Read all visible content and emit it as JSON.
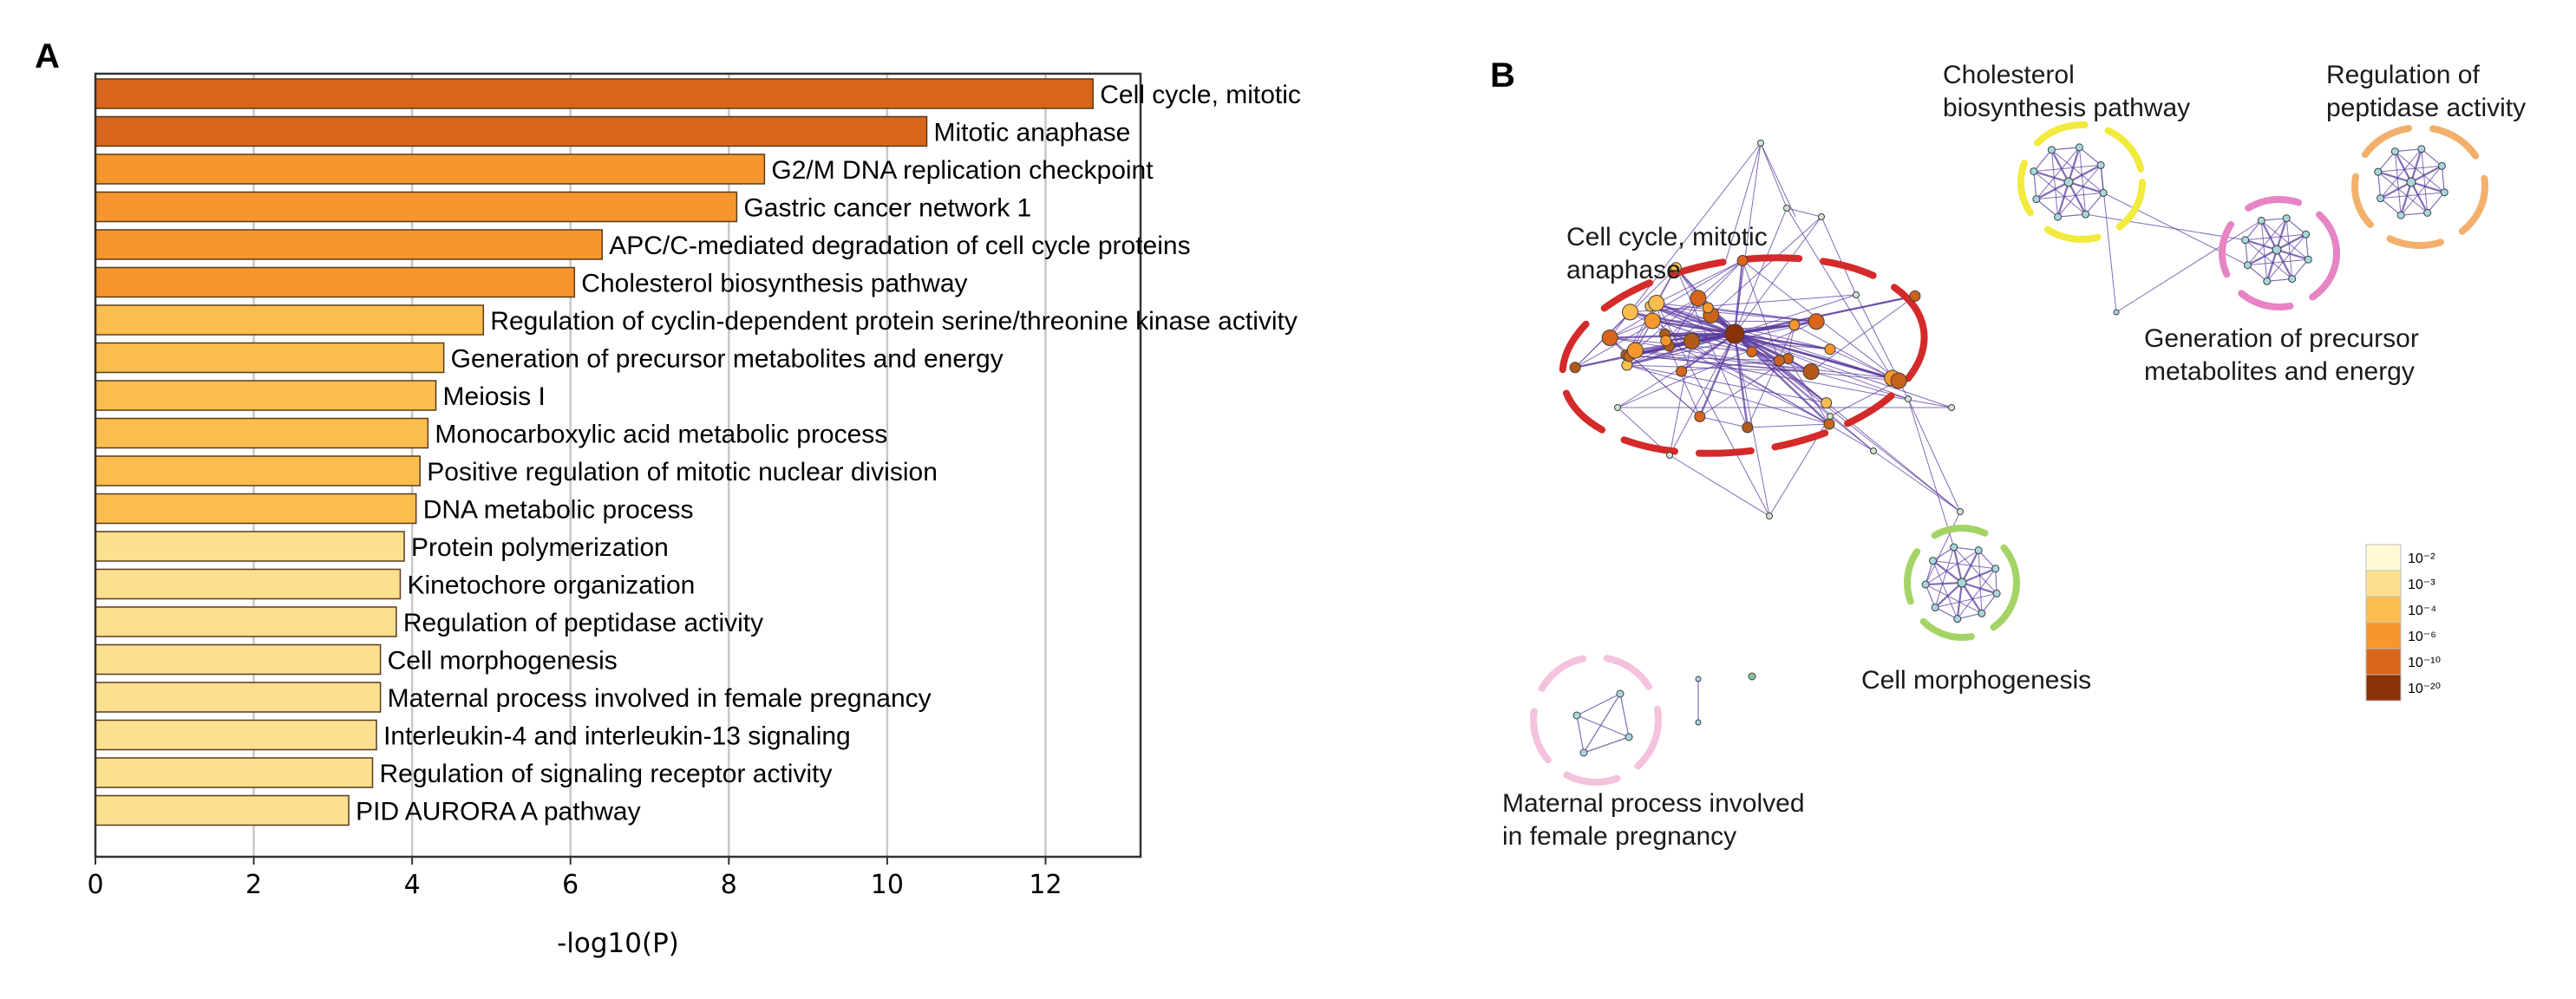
{
  "panel_a": {
    "letter": "A"
  },
  "panel_b": {
    "letter": "B"
  },
  "chart_data": {
    "type": "bar",
    "orientation": "horizontal",
    "categories": [
      "Cell cycle, mitotic",
      "Mitotic anaphase",
      "G2/M DNA replication checkpoint",
      "Gastric cancer network 1",
      "APC/C-mediated degradation of cell cycle proteins",
      "Cholesterol biosynthesis pathway",
      "Regulation of cyclin-dependent protein serine/threonine kinase activity",
      "Generation of precursor metabolites and energy",
      "Meiosis I",
      "Monocarboxylic acid metabolic process",
      "Positive regulation of mitotic nuclear division",
      "DNA metabolic process",
      "Protein polymerization",
      "Kinetochore organization",
      "Regulation of peptidase activity",
      "Cell morphogenesis",
      "Maternal process involved in female pregnancy",
      "Interleukin-4 and interleukin-13 signaling",
      "Regulation of signaling receptor activity",
      "PID AURORA A pathway"
    ],
    "values": [
      12.6,
      10.5,
      8.45,
      8.1,
      6.4,
      6.05,
      4.9,
      4.4,
      4.3,
      4.2,
      4.1,
      4.05,
      3.9,
      3.85,
      3.8,
      3.6,
      3.6,
      3.55,
      3.5,
      3.2
    ],
    "colors": [
      "#d9651c",
      "#d9651c",
      "#f6962d",
      "#f6962d",
      "#f6962d",
      "#f6962d",
      "#fbbd4e",
      "#fbbd4e",
      "#fbbd4e",
      "#fbbd4e",
      "#fbbd4e",
      "#fbbd4e",
      "#fde08f",
      "#fde08f",
      "#fde08f",
      "#fde08f",
      "#fde08f",
      "#fde08f",
      "#fde08f",
      "#fde08f"
    ],
    "title": "",
    "xlabel": "-log10(P)",
    "ylabel": "",
    "xlim": [
      0,
      13.2
    ],
    "xticks": [
      "0",
      "2",
      "4",
      "6",
      "8",
      "10",
      "12"
    ],
    "grid": true
  },
  "network": {
    "clusters": [
      {
        "label_lines": [
          "Cell cycle, mitotic",
          "anaphase"
        ],
        "ring_color": "#d42a2a"
      },
      {
        "label_lines": [
          "Cholesterol",
          "biosynthesis pathway"
        ],
        "ring_color": "#f2ea3c"
      },
      {
        "label_lines": [
          "Regulation of",
          "peptidase activity"
        ],
        "ring_color": "#f3b06c"
      },
      {
        "label_lines": [
          "Generation of precursor",
          "metabolites and energy"
        ],
        "ring_color": "#e684c4"
      },
      {
        "label_lines": [
          "Cell morphogenesis"
        ],
        "ring_color": "#a4d466"
      },
      {
        "label_lines": [
          "Maternal process involved",
          "in female pregnancy"
        ],
        "ring_color": "#f4c2dc"
      }
    ],
    "edge_color": "#5b3a9e",
    "legend": {
      "items": [
        "10⁻²",
        "10⁻³",
        "10⁻⁴",
        "10⁻⁶",
        "10⁻¹⁰",
        "10⁻²⁰"
      ],
      "colors": [
        "#fff9d6",
        "#fde08f",
        "#fbbd4e",
        "#f6962d",
        "#d9651c",
        "#8a3107"
      ]
    }
  }
}
